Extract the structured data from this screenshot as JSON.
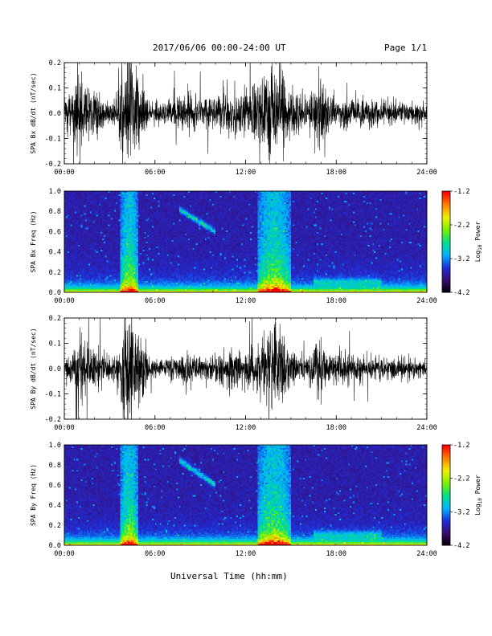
{
  "header": {
    "title": "2017/06/06  00:00-24:00 UT",
    "page": "Page 1/1"
  },
  "x_axis_title": "Universal Time (hh:mm)",
  "chart_data": [
    {
      "type": "line",
      "name": "bx-waveform",
      "ylabel": "SPA Bx dB/dt (nT/sec)",
      "ylim": [
        -0.2,
        0.2
      ],
      "yticks": [
        "-0.2",
        "-0.1",
        "0.0",
        "0.1",
        "0.2"
      ],
      "xlim": [
        0,
        24
      ],
      "xticks": [
        "00:00",
        "06:00",
        "12:00",
        "18:00",
        "24:00"
      ],
      "amplitude_envelope": {
        "hours": [
          0,
          0.5,
          1,
          1.5,
          2,
          2.5,
          3,
          3.5,
          4,
          4.5,
          5,
          5.5,
          6,
          6.5,
          7,
          7.5,
          8,
          8.5,
          9,
          9.5,
          10,
          10.5,
          11,
          11.5,
          12,
          12.5,
          13,
          13.5,
          14,
          14.5,
          15,
          15.5,
          16,
          16.5,
          17,
          17.5,
          18,
          18.5,
          19,
          19.5,
          20,
          20.5,
          21,
          21.5,
          22,
          22.5,
          23,
          23.5,
          24
        ],
        "values": [
          0.05,
          0.08,
          0.2,
          0.1,
          0.12,
          0.05,
          0.04,
          0.06,
          0.2,
          0.2,
          0.14,
          0.05,
          0.04,
          0.04,
          0.05,
          0.06,
          0.07,
          0.06,
          0.07,
          0.06,
          0.06,
          0.08,
          0.09,
          0.07,
          0.08,
          0.1,
          0.13,
          0.14,
          0.2,
          0.15,
          0.08,
          0.07,
          0.06,
          0.1,
          0.13,
          0.06,
          0.06,
          0.07,
          0.06,
          0.05,
          0.05,
          0.05,
          0.04,
          0.04,
          0.04,
          0.04,
          0.04,
          0.04,
          0.03
        ]
      }
    },
    {
      "type": "heatmap",
      "name": "bx-spectrogram",
      "ylabel": "SPA Bx Freq (Hz)",
      "ylim": [
        0,
        1.0
      ],
      "yticks": [
        "0.0",
        "0.2",
        "0.4",
        "0.6",
        "0.8",
        "1.0"
      ],
      "xlim": [
        0,
        24
      ],
      "xticks": [
        "00:00",
        "06:00",
        "12:00",
        "18:00",
        "24:00"
      ],
      "colorbar": {
        "label": "Log10 Power",
        "label_main": "Log",
        "label_sub": "10",
        "label_tail": " Power",
        "range": [
          -4.2,
          -1.2
        ],
        "ticks": [
          "-1.2",
          "-2.2",
          "-3.2",
          "-4.2"
        ]
      },
      "features": {
        "broadband_bursts_hours": [
          [
            3.7,
            4.9
          ],
          [
            12.8,
            15.0
          ]
        ],
        "narrowband_emission": {
          "hours": [
            7.6,
            10.0
          ],
          "freq_hz": [
            0.6,
            0.82
          ]
        },
        "low_band_hours": [
          [
            16.5,
            21.0
          ]
        ]
      }
    },
    {
      "type": "line",
      "name": "by-waveform",
      "ylabel": "SPA By dB/dt (nT/sec)",
      "ylim": [
        -0.2,
        0.2
      ],
      "yticks": [
        "-0.2",
        "-0.1",
        "0.0",
        "0.1",
        "0.2"
      ],
      "xlim": [
        0,
        24
      ],
      "xticks": [
        "00:00",
        "06:00",
        "12:00",
        "18:00",
        "24:00"
      ],
      "amplitude_envelope": {
        "hours": [
          0,
          0.5,
          1,
          1.5,
          2,
          2.5,
          3,
          3.5,
          4,
          4.5,
          5,
          5.5,
          6,
          6.5,
          7,
          7.5,
          8,
          8.5,
          9,
          9.5,
          10,
          10.5,
          11,
          11.5,
          12,
          12.5,
          13,
          13.5,
          14,
          14.5,
          15,
          15.5,
          16,
          16.5,
          17,
          17.5,
          18,
          18.5,
          19,
          19.5,
          20,
          20.5,
          21,
          21.5,
          22,
          22.5,
          23,
          23.5,
          24
        ],
        "values": [
          0.04,
          0.06,
          0.12,
          0.1,
          0.1,
          0.06,
          0.04,
          0.06,
          0.2,
          0.2,
          0.12,
          0.05,
          0.04,
          0.04,
          0.04,
          0.05,
          0.06,
          0.05,
          0.05,
          0.05,
          0.05,
          0.06,
          0.07,
          0.06,
          0.07,
          0.08,
          0.12,
          0.16,
          0.2,
          0.12,
          0.07,
          0.06,
          0.05,
          0.08,
          0.12,
          0.05,
          0.06,
          0.06,
          0.05,
          0.05,
          0.04,
          0.04,
          0.04,
          0.04,
          0.04,
          0.04,
          0.04,
          0.03,
          0.03
        ]
      }
    },
    {
      "type": "heatmap",
      "name": "by-spectrogram",
      "ylabel": "SPA By Freq (Hz)",
      "ylim": [
        0,
        1.0
      ],
      "yticks": [
        "0.0",
        "0.2",
        "0.4",
        "0.6",
        "0.8",
        "1.0"
      ],
      "xlim": [
        0,
        24
      ],
      "xticks": [
        "00:00",
        "06:00",
        "12:00",
        "18:00",
        "24:00"
      ],
      "colorbar": {
        "label": "Log10 Power",
        "label_main": "Log",
        "label_sub": "10",
        "label_tail": " Power",
        "range": [
          -4.2,
          -1.2
        ],
        "ticks": [
          "-1.2",
          "-2.2",
          "-3.2",
          "-4.2"
        ]
      },
      "features": {
        "broadband_bursts_hours": [
          [
            3.7,
            4.9
          ],
          [
            12.8,
            15.0
          ]
        ],
        "narrowband_emission": {
          "hours": [
            7.6,
            10.0
          ],
          "freq_hz": [
            0.6,
            0.85
          ]
        },
        "low_band_hours": [
          [
            16.5,
            21.0
          ]
        ]
      }
    }
  ],
  "colors": {
    "trace": "#000000",
    "background_low": "#2a0a52",
    "colormap": [
      "#000000",
      "#3a0a6e",
      "#1f2dd6",
      "#00b4ff",
      "#00e08a",
      "#7cf000",
      "#f0f000",
      "#ff8000",
      "#ff0000"
    ]
  }
}
